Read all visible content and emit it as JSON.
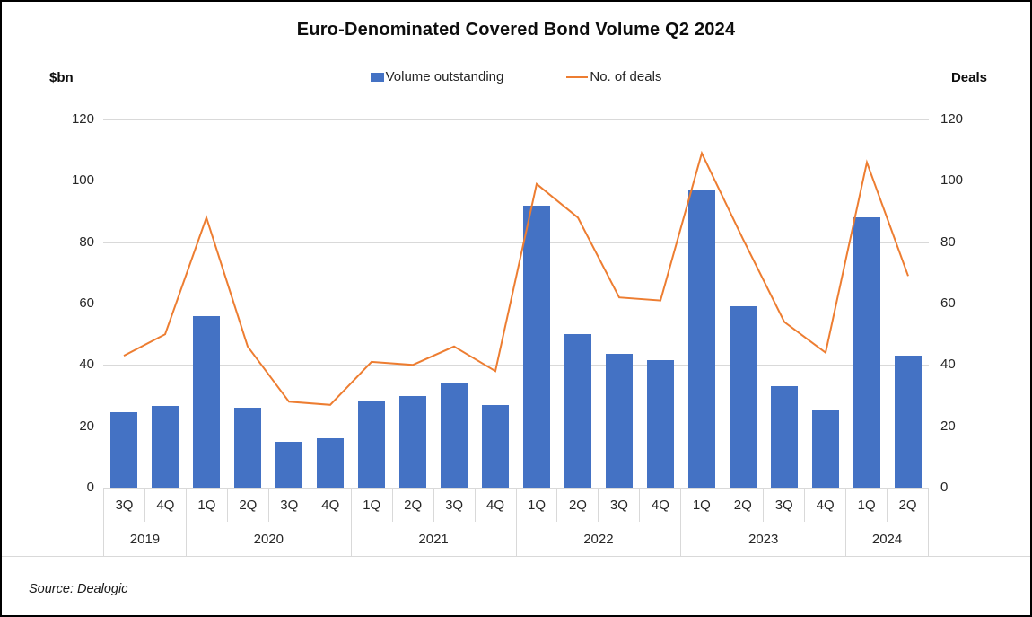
{
  "title": "Euro-Denominated Covered Bond Volume Q2 2024",
  "left_axis_unit": "$bn",
  "right_axis_unit": "Deals",
  "legend": {
    "volume_label": "Volume outstanding",
    "deals_label": "No. of deals"
  },
  "source": "Source: Dealogic",
  "colors": {
    "bar": "#4472C4",
    "line": "#ED7D31",
    "gridline": "#D9D9D9"
  },
  "chart_data": {
    "type": "bar+line combo",
    "title": "Euro-Denominated Covered Bond Volume Q2 2024",
    "categories": [
      "3Q",
      "4Q",
      "1Q",
      "2Q",
      "3Q",
      "4Q",
      "1Q",
      "2Q",
      "3Q",
      "4Q",
      "1Q",
      "2Q",
      "3Q",
      "4Q",
      "1Q",
      "2Q",
      "3Q",
      "4Q",
      "1Q",
      "2Q"
    ],
    "year_groups": [
      {
        "label": "2019",
        "span": 2
      },
      {
        "label": "2020",
        "span": 4
      },
      {
        "label": "2021",
        "span": 4
      },
      {
        "label": "2022",
        "span": 4
      },
      {
        "label": "2023",
        "span": 4
      },
      {
        "label": "2024",
        "span": 2
      }
    ],
    "series": [
      {
        "name": "Volume outstanding",
        "type": "bar",
        "axis": "left ($bn)",
        "values": [
          24.5,
          26.5,
          56,
          26,
          15,
          16,
          28,
          30,
          34,
          27,
          92,
          50,
          43.5,
          41.5,
          97,
          59,
          33,
          25.5,
          88,
          43
        ]
      },
      {
        "name": "No. of deals",
        "type": "line",
        "axis": "right (Deals)",
        "values": [
          43,
          50,
          88,
          46,
          28,
          27,
          41,
          40,
          46,
          38,
          99,
          88,
          62,
          61,
          109,
          81,
          54,
          44,
          106,
          69
        ]
      }
    ],
    "y_ticks": [
      0,
      20,
      40,
      60,
      80,
      100,
      120
    ],
    "ylim": [
      0,
      120
    ],
    "ylabel_left": "$bn",
    "ylabel_right": "Deals",
    "grid": true,
    "legend_position": "top-center"
  }
}
